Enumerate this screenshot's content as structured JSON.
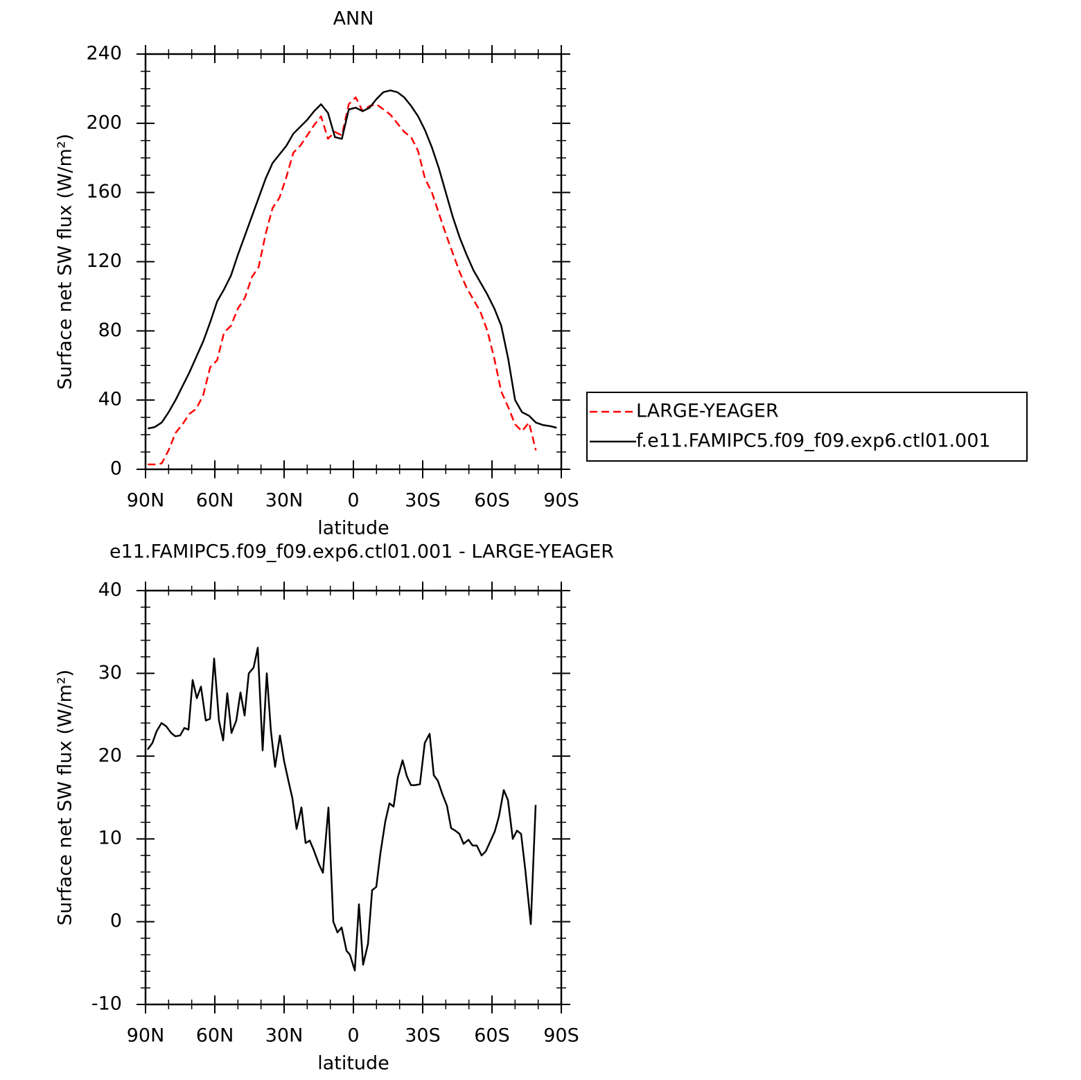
{
  "chart_data": [
    {
      "type": "line",
      "title": "ANN",
      "xlabel": "latitude",
      "ylabel": "Surface net SW flux (W/m²)",
      "x": [
        89,
        86,
        83,
        80,
        77,
        74,
        71,
        68,
        65,
        62,
        59,
        56,
        53,
        50,
        47,
        44,
        41,
        38,
        35,
        32,
        29,
        26,
        23,
        20,
        17,
        14,
        11,
        8,
        5,
        2,
        -1,
        -4,
        -7,
        -10,
        -13,
        -16,
        -19,
        -22,
        -25,
        -28,
        -31,
        -34,
        -37,
        -40,
        -43,
        -46,
        -49,
        -52,
        -55,
        -58,
        -61,
        -64,
        -67,
        -70,
        -73,
        -76,
        -79,
        -82,
        -85,
        -88
      ],
      "series": [
        {
          "name": "LARGE-YEAGER",
          "color": "#ff0000",
          "dash": true,
          "values": [
            2.8,
            2.8,
            3.4,
            11,
            21,
            26,
            32,
            35,
            43,
            59,
            63,
            79,
            83,
            93,
            99,
            111,
            117,
            136,
            151,
            157,
            169,
            183,
            187,
            193,
            199,
            204,
            191,
            195,
            193,
            211,
            215,
            207,
            210,
            211,
            208,
            205,
            200,
            195,
            192,
            184,
            168,
            160,
            148,
            136,
            125,
            114,
            105,
            98,
            91,
            80,
            64,
            45,
            36,
            26,
            22,
            27,
            11,
            null,
            null,
            null
          ]
        },
        {
          "name": "f.e11.FAMIPC5.f09_f09.exp6.ctl01.001",
          "color": "#000000",
          "dash": false,
          "values": [
            23.6,
            24.4,
            27,
            33,
            40,
            48,
            56,
            65,
            74,
            85,
            97,
            104,
            112,
            124,
            135,
            146,
            157,
            168,
            177,
            182,
            187,
            194,
            198,
            202,
            207,
            211,
            206,
            192,
            191,
            208,
            209,
            207,
            209,
            214,
            218,
            219,
            218,
            215,
            210,
            204,
            196,
            186,
            174,
            160,
            146,
            134,
            124,
            115,
            108,
            101,
            93,
            83,
            64,
            40,
            33,
            31,
            27,
            25.6,
            25,
            24
          ]
        }
      ],
      "xlim": [
        90,
        -90
      ],
      "xticks": [
        {
          "value": 90,
          "label": "90N"
        },
        {
          "value": 60,
          "label": "60N"
        },
        {
          "value": 30,
          "label": "30N"
        },
        0,
        {
          "value": -30,
          "label": "30S"
        },
        {
          "value": -60,
          "label": "60S"
        },
        {
          "value": -90,
          "label": "90S"
        }
      ],
      "ylim": [
        0,
        240
      ],
      "yticks": [
        0,
        40,
        80,
        120,
        160,
        200,
        240
      ],
      "legend": "right"
    },
    {
      "type": "line",
      "title": "e11.FAMIPC5.f09_f09.exp6.ctl01.001 - LARGE-YEAGER",
      "xlabel": "latitude",
      "ylabel": "Surface net SW flux (W/m²)",
      "x": [
        89.1,
        87,
        85.2,
        83.1,
        81,
        78.9,
        77.1,
        75,
        73.2,
        71.4,
        69.6,
        67.8,
        66,
        63.9,
        62.1,
        60.3,
        58.2,
        56.4,
        54.6,
        52.8,
        50.7,
        48.9,
        47.1,
        45.3,
        43.2,
        41.4,
        39.3,
        37.5,
        35.7,
        33.9,
        31.8,
        30,
        28.2,
        26.4,
        24.6,
        22.5,
        20.7,
        18.9,
        17.1,
        15,
        13.2,
        10.8,
        8.7,
        6.9,
        5.1,
        3,
        1.5,
        -0.6,
        -2.4,
        -4.2,
        -6.3,
        -8.1,
        -9.9,
        -11.7,
        -13.8,
        -15.6,
        -17.4,
        -19.2,
        -21.3,
        -23.1,
        -24.9,
        -26.7,
        -28.8,
        -30.9,
        -33,
        -34.8,
        -36.6,
        -38.4,
        -40.5,
        -42.3,
        -44.1,
        -45.9,
        -47.7,
        -49.8,
        -51.6,
        -53.4,
        -55.5,
        -57.3,
        -59.1,
        -61.2,
        -63,
        -65.1,
        -66.9,
        -69,
        -70.8,
        -72.6,
        -74.4,
        -76.8,
        -78.9
      ],
      "series": [
        {
          "color": "#000000",
          "dash": false,
          "values": [
            20.8,
            21.6,
            23,
            24,
            23.6,
            22.8,
            22.4,
            22.5,
            23.4,
            23.2,
            29.2,
            27,
            28.4,
            24.3,
            24.5,
            31.8,
            24.3,
            21.9,
            27.6,
            22.8,
            24.3,
            27.7,
            24.9,
            30,
            30.7,
            33.1,
            20.7,
            30,
            23,
            18.7,
            22.5,
            19.4,
            17.1,
            14.9,
            11.2,
            13.8,
            9.5,
            9.8,
            8.6,
            7,
            5.9,
            13.8,
            0,
            -1.3,
            -0.7,
            -3.5,
            -4,
            -5.9,
            2.1,
            -5.2,
            -2.7,
            3.8,
            4.2,
            8.3,
            12.1,
            14.3,
            13.9,
            17.4,
            19.5,
            17.6,
            16.5,
            16.5,
            16.6,
            21.6,
            22.7,
            17.7,
            17,
            15.5,
            14,
            11.3,
            11,
            10.6,
            9.4,
            9.9,
            9.2,
            9.2,
            8,
            8.5,
            9.6,
            10.9,
            12.7,
            15.9,
            14.7,
            10,
            11,
            10.6,
            6.3,
            -0.3,
            14.1
          ]
        }
      ],
      "xlim": [
        90,
        -90
      ],
      "xticks": [
        {
          "value": 90,
          "label": "90N"
        },
        {
          "value": 60,
          "label": "60N"
        },
        {
          "value": 30,
          "label": "30N"
        },
        0,
        {
          "value": -30,
          "label": "30S"
        },
        {
          "value": -60,
          "label": "60S"
        },
        {
          "value": -90,
          "label": "90S"
        }
      ],
      "ylim": [
        -10,
        40
      ],
      "yticks": [
        -10,
        0,
        10,
        20,
        30,
        40
      ]
    }
  ]
}
